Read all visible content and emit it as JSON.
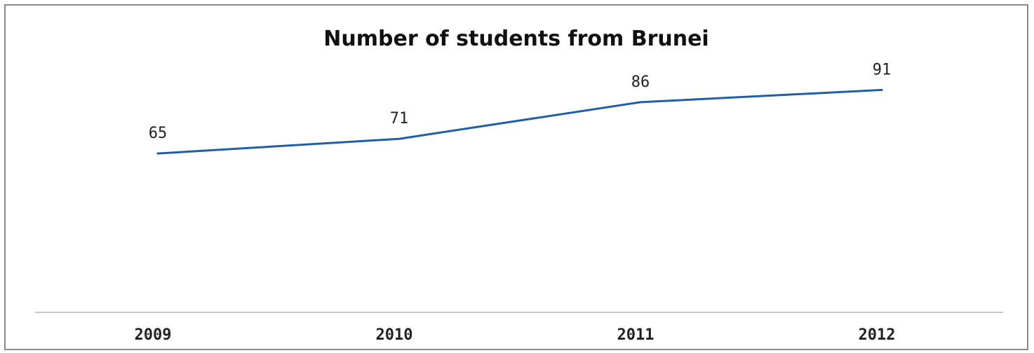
{
  "chart_data": {
    "type": "line",
    "title": "Number of students from Brunei",
    "categories": [
      "2009",
      "2010",
      "2011",
      "2012"
    ],
    "series": [
      {
        "values": [
          65,
          71,
          86,
          91
        ],
        "color": "#1f5fa8"
      }
    ],
    "data_labels": [
      "65",
      "71",
      "86",
      "91"
    ],
    "xlabel": "",
    "ylabel": "",
    "ylim": [
      0,
      100
    ],
    "grid": false,
    "legend": "none"
  }
}
